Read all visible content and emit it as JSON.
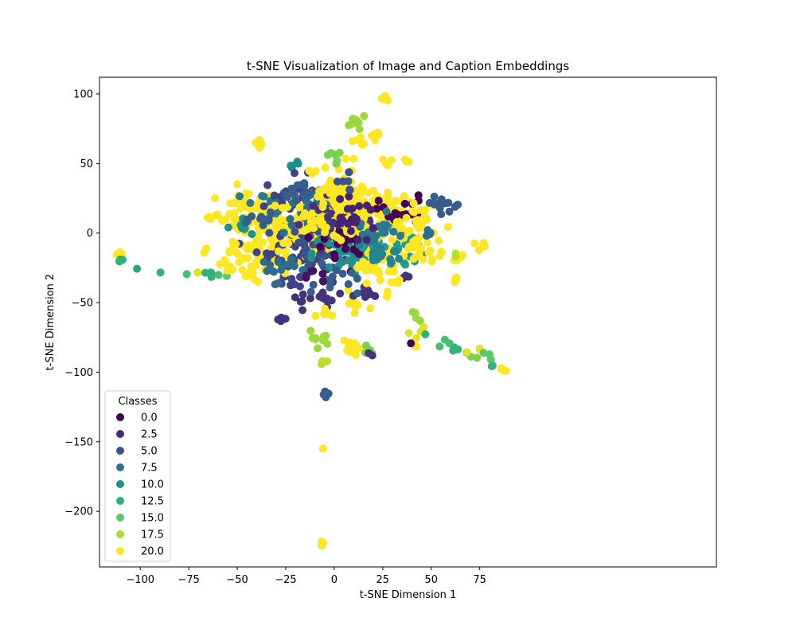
{
  "chart_data": {
    "type": "scatter",
    "title": "t-SNE Visualization of Image and Caption Embeddings",
    "xlabel": "t-SNE Dimension 1",
    "ylabel": "t-SNE Dimension 2",
    "xlim": [
      -121,
      197
    ],
    "ylim": [
      -240,
      112
    ],
    "xticks": [
      -100,
      -75,
      -50,
      -25,
      0,
      25,
      50,
      75
    ],
    "yticks": [
      100,
      50,
      0,
      -50,
      -100,
      -150,
      -200
    ],
    "grid": false,
    "colormap": "viridis",
    "class_range": [
      0,
      20
    ],
    "legend": {
      "title": "Classes",
      "position": "lower-left",
      "entries": [
        {
          "label": "0.0",
          "color": "#440154"
        },
        {
          "label": "2.5",
          "color": "#472c7a"
        },
        {
          "label": "5.0",
          "color": "#3b518b"
        },
        {
          "label": "7.5",
          "color": "#2c718e"
        },
        {
          "label": "10.0",
          "color": "#21908d"
        },
        {
          "label": "12.5",
          "color": "#27ad81"
        },
        {
          "label": "15.0",
          "color": "#5cc863"
        },
        {
          "label": "17.5",
          "color": "#aadc32"
        },
        {
          "label": "20.0",
          "color": "#fde725"
        }
      ]
    },
    "clusters": [
      {
        "x": -110,
        "y": -15,
        "spread": 1,
        "n": 8,
        "class": 20
      },
      {
        "x": -110,
        "y": -19,
        "spread": 1,
        "n": 3,
        "class": 13
      },
      {
        "x": -102,
        "y": -26,
        "spread": 0.5,
        "n": 1,
        "class": 12
      },
      {
        "x": -90,
        "y": -28,
        "spread": 0.5,
        "n": 1,
        "class": 13
      },
      {
        "x": -76,
        "y": -29,
        "spread": 0.5,
        "n": 1,
        "class": 14
      },
      {
        "x": -71,
        "y": -29,
        "spread": 0.5,
        "n": 1,
        "class": 19
      },
      {
        "x": -67,
        "y": -29,
        "spread": 0.5,
        "n": 1,
        "class": 13
      },
      {
        "x": -63,
        "y": -29,
        "spread": 1,
        "n": 3,
        "class": 13
      },
      {
        "x": -59,
        "y": -30,
        "spread": 0.5,
        "n": 1,
        "class": 14
      },
      {
        "x": -56,
        "y": -30,
        "spread": 0.5,
        "n": 1,
        "class": 15
      },
      {
        "x": -38,
        "y": 64,
        "spread": 1.5,
        "n": 6,
        "class": 20
      },
      {
        "x": -20,
        "y": 49,
        "spread": 1.5,
        "n": 5,
        "class": 10
      },
      {
        "x": -26,
        "y": -62,
        "spread": 1.5,
        "n": 5,
        "class": 3
      },
      {
        "x": -22,
        "y": -36,
        "spread": 3,
        "n": 8,
        "class": 4
      },
      {
        "x": -45,
        "y": 15,
        "spread": 8,
        "n": 45,
        "class": 20
      },
      {
        "x": -40,
        "y": -15,
        "spread": 8,
        "n": 30,
        "class": 20
      },
      {
        "x": -35,
        "y": 20,
        "spread": 6,
        "n": 20,
        "class": 8
      },
      {
        "x": -30,
        "y": 0,
        "spread": 10,
        "n": 50,
        "class": 20
      },
      {
        "x": -20,
        "y": 25,
        "spread": 8,
        "n": 30,
        "class": 4
      },
      {
        "x": -20,
        "y": -10,
        "spread": 10,
        "n": 40,
        "class": 4
      },
      {
        "x": -15,
        "y": 5,
        "spread": 10,
        "n": 60,
        "class": 20
      },
      {
        "x": -10,
        "y": 15,
        "spread": 8,
        "n": 35,
        "class": 7
      },
      {
        "x": -5,
        "y": 0,
        "spread": 8,
        "n": 70,
        "class": 20
      },
      {
        "x": -5,
        "y": -10,
        "spread": 10,
        "n": 50,
        "class": 5
      },
      {
        "x": 0,
        "y": 20,
        "spread": 8,
        "n": 40,
        "class": 20
      },
      {
        "x": 5,
        "y": 5,
        "spread": 10,
        "n": 50,
        "class": 3
      },
      {
        "x": 5,
        "y": -15,
        "spread": 8,
        "n": 40,
        "class": 10
      },
      {
        "x": 10,
        "y": 20,
        "spread": 10,
        "n": 50,
        "class": 20
      },
      {
        "x": 10,
        "y": -5,
        "spread": 8,
        "n": 40,
        "class": 0
      },
      {
        "x": 15,
        "y": 10,
        "spread": 8,
        "n": 40,
        "class": 20
      },
      {
        "x": 20,
        "y": -20,
        "spread": 8,
        "n": 30,
        "class": 20
      },
      {
        "x": 25,
        "y": 20,
        "spread": 6,
        "n": 30,
        "class": 20
      },
      {
        "x": 30,
        "y": -10,
        "spread": 8,
        "n": 30,
        "class": 11
      },
      {
        "x": 35,
        "y": 15,
        "spread": 6,
        "n": 20,
        "class": 0
      },
      {
        "x": 40,
        "y": -5,
        "spread": 8,
        "n": 30,
        "class": 20
      },
      {
        "x": 45,
        "y": 10,
        "spread": 6,
        "n": 15,
        "class": 20
      },
      {
        "x": 55,
        "y": 20,
        "spread": 4,
        "n": 12,
        "class": 6
      },
      {
        "x": 50,
        "y": 0,
        "spread": 3,
        "n": 6,
        "class": 7
      },
      {
        "x": 45,
        "y": -15,
        "spread": 4,
        "n": 8,
        "class": 20
      },
      {
        "x": 12,
        "y": 80,
        "spread": 2,
        "n": 8,
        "class": 17
      },
      {
        "x": 11,
        "y": 66,
        "spread": 2,
        "n": 6,
        "class": 20
      },
      {
        "x": 22,
        "y": 70,
        "spread": 1.5,
        "n": 5,
        "class": 20
      },
      {
        "x": 26,
        "y": 97,
        "spread": 1.5,
        "n": 6,
        "class": 20
      },
      {
        "x": 28,
        "y": 51,
        "spread": 1.5,
        "n": 4,
        "class": 20
      },
      {
        "x": 37,
        "y": 52,
        "spread": 1,
        "n": 3,
        "class": 20
      },
      {
        "x": 5,
        "y": 45,
        "spread": 5,
        "n": 10,
        "class": 20
      },
      {
        "x": 0,
        "y": 55,
        "spread": 3,
        "n": 6,
        "class": 16
      },
      {
        "x": -12,
        "y": 44,
        "spread": 1.5,
        "n": 3,
        "class": 20
      },
      {
        "x": 10,
        "y": -50,
        "spread": 4,
        "n": 12,
        "class": 20
      },
      {
        "x": 15,
        "y": -45,
        "spread": 4,
        "n": 10,
        "class": 3
      },
      {
        "x": -5,
        "y": -45,
        "spread": 4,
        "n": 10,
        "class": 3
      },
      {
        "x": -15,
        "y": -46,
        "spread": 3,
        "n": 6,
        "class": 3
      },
      {
        "x": 10,
        "y": -84,
        "spread": 3,
        "n": 12,
        "class": 20
      },
      {
        "x": 16,
        "y": -84,
        "spread": 2,
        "n": 5,
        "class": 16
      },
      {
        "x": 18,
        "y": -88,
        "spread": 1,
        "n": 2,
        "class": 3
      },
      {
        "x": -7,
        "y": -75,
        "spread": 3,
        "n": 10,
        "class": 17
      },
      {
        "x": -6,
        "y": -95,
        "spread": 2,
        "n": 3,
        "class": 18
      },
      {
        "x": -3,
        "y": -58,
        "spread": 3,
        "n": 6,
        "class": 20
      },
      {
        "x": -3,
        "y": -116,
        "spread": 1.5,
        "n": 5,
        "class": 6
      },
      {
        "x": -6,
        "y": -155,
        "spread": 0.5,
        "n": 2,
        "class": 20
      },
      {
        "x": -6,
        "y": -223,
        "spread": 1,
        "n": 4,
        "class": 20
      },
      {
        "x": 45,
        "y": -70,
        "spread": 2,
        "n": 3,
        "class": 19
      },
      {
        "x": 42,
        "y": -60,
        "spread": 2,
        "n": 4,
        "class": 17
      },
      {
        "x": 42,
        "y": -81,
        "spread": 1,
        "n": 4,
        "class": 20
      },
      {
        "x": 40,
        "y": -80,
        "spread": 0.5,
        "n": 1,
        "class": 0
      },
      {
        "x": 38,
        "y": -72,
        "spread": 0.5,
        "n": 1,
        "class": 19
      },
      {
        "x": 47,
        "y": -73,
        "spread": 0.5,
        "n": 1,
        "class": 13
      },
      {
        "x": 60,
        "y": -78,
        "spread": 2,
        "n": 3,
        "class": 14
      },
      {
        "x": 64,
        "y": -83,
        "spread": 2,
        "n": 3,
        "class": 13
      },
      {
        "x": 70,
        "y": -88,
        "spread": 2,
        "n": 3,
        "class": 16
      },
      {
        "x": 76,
        "y": -86,
        "spread": 2,
        "n": 3,
        "class": 19
      },
      {
        "x": 80,
        "y": -88,
        "spread": 1.5,
        "n": 3,
        "class": 15
      },
      {
        "x": 82,
        "y": -95,
        "spread": 1,
        "n": 2,
        "class": 13
      },
      {
        "x": 86,
        "y": -98,
        "spread": 1,
        "n": 6,
        "class": 20
      },
      {
        "x": 75,
        "y": -9,
        "spread": 1.5,
        "n": 5,
        "class": 20
      },
      {
        "x": 65,
        "y": -17,
        "spread": 1.5,
        "n": 4,
        "class": 20
      },
      {
        "x": 63,
        "y": -33,
        "spread": 1,
        "n": 4,
        "class": 20
      },
      {
        "x": 63,
        "y": -17,
        "spread": 1,
        "n": 2,
        "class": 18
      },
      {
        "x": 62,
        "y": 20,
        "spread": 1,
        "n": 3,
        "class": 6
      },
      {
        "x": 54,
        "y": -15,
        "spread": 1,
        "n": 3,
        "class": 20
      },
      {
        "x": 37,
        "y": -32,
        "spread": 1.5,
        "n": 3,
        "class": 3
      },
      {
        "x": 28,
        "y": -44,
        "spread": 1,
        "n": 2,
        "class": 20
      },
      {
        "x": 32,
        "y": -35,
        "spread": 1,
        "n": 2,
        "class": 20
      },
      {
        "x": -42,
        "y": -30,
        "spread": 3,
        "n": 8,
        "class": 20
      },
      {
        "x": -50,
        "y": -15,
        "spread": 3,
        "n": 6,
        "class": 20
      },
      {
        "x": -58,
        "y": -20,
        "spread": 2,
        "n": 4,
        "class": 20
      },
      {
        "x": -62,
        "y": 10,
        "spread": 3,
        "n": 6,
        "class": 20
      },
      {
        "x": -66,
        "y": -12,
        "spread": 1,
        "n": 3,
        "class": 20
      },
      {
        "x": -45,
        "y": 5,
        "spread": 4,
        "n": 10,
        "class": 10
      },
      {
        "x": -30,
        "y": -25,
        "spread": 5,
        "n": 15,
        "class": 7
      },
      {
        "x": -20,
        "y": 30,
        "spread": 4,
        "n": 12,
        "class": 6
      },
      {
        "x": 0,
        "y": -35,
        "spread": 6,
        "n": 15,
        "class": 6
      },
      {
        "x": -10,
        "y": -30,
        "spread": 3,
        "n": 6,
        "class": 1
      },
      {
        "x": 20,
        "y": -30,
        "spread": 5,
        "n": 10,
        "class": 20
      },
      {
        "x": 20,
        "y": 0,
        "spread": 6,
        "n": 20,
        "class": 8
      },
      {
        "x": 25,
        "y": -15,
        "spread": 5,
        "n": 15,
        "class": 9
      },
      {
        "x": 10,
        "y": 10,
        "spread": 6,
        "n": 20,
        "class": 2
      },
      {
        "x": -35,
        "y": 10,
        "spread": 4,
        "n": 10,
        "class": 6
      },
      {
        "x": 0,
        "y": 30,
        "spread": 3,
        "n": 10,
        "class": 20
      },
      {
        "x": 5,
        "y": 35,
        "spread": 3,
        "n": 6,
        "class": 5
      }
    ]
  }
}
